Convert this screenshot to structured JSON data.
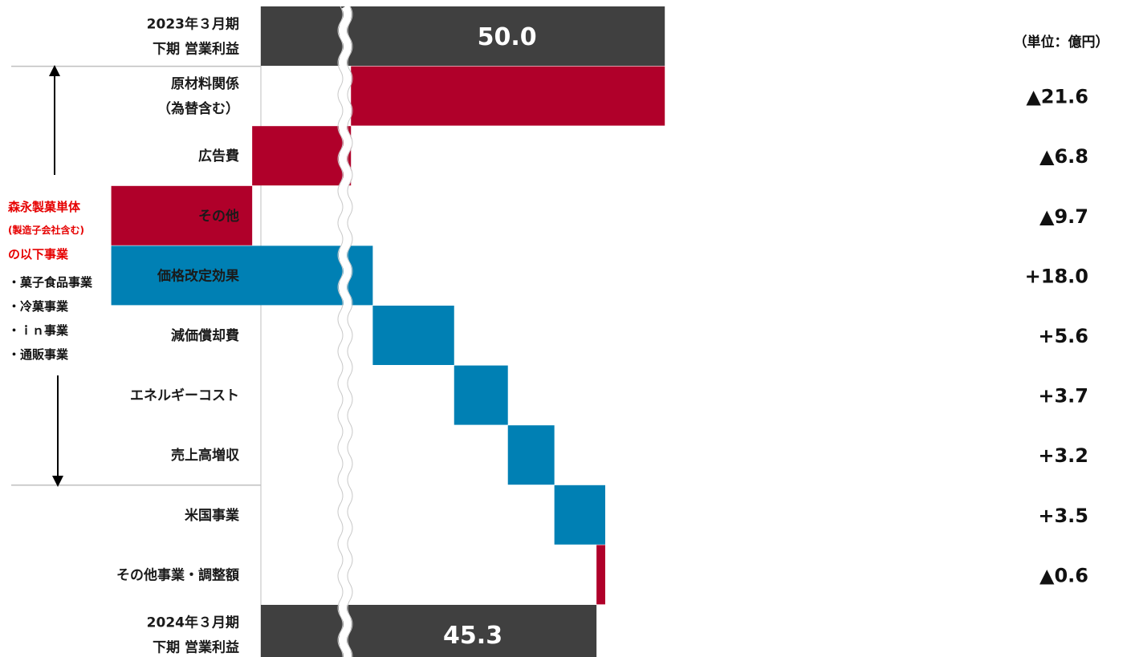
{
  "colors": {
    "decrease": "#b0002a",
    "increase": "#0080b4",
    "total": "#404040",
    "group_text": "#e60000"
  },
  "unit_label": "（単位：億円）",
  "group": {
    "title": "森永製菓単体",
    "subtitle": "(製造子会社含む)",
    "suffix": "の以下事業",
    "items": [
      "・菓子食品事業",
      "・冷菓事業",
      "・ｉｎ事業",
      "・通販事業"
    ]
  },
  "chart_data": {
    "type": "waterfall",
    "axis_break": true,
    "start": {
      "label_lines": [
        "2023年３月期",
        "下期 営業利益"
      ],
      "value": 50.0,
      "value_label": "50.0"
    },
    "steps": [
      {
        "label_lines": [
          "原材料関係",
          "（為替含む）"
        ],
        "value": -21.6,
        "value_label": "▲21.6"
      },
      {
        "label_lines": [
          "広告費"
        ],
        "value": -6.8,
        "value_label": "▲6.8"
      },
      {
        "label_lines": [
          "その他"
        ],
        "value": -9.7,
        "value_label": "▲9.7"
      },
      {
        "label_lines": [
          "価格改定効果"
        ],
        "value": 18.0,
        "value_label": "+18.0"
      },
      {
        "label_lines": [
          "減価償却費"
        ],
        "value": 5.6,
        "value_label": "+5.6"
      },
      {
        "label_lines": [
          "エネルギーコスト"
        ],
        "value": 3.7,
        "value_label": "+3.7"
      },
      {
        "label_lines": [
          "売上高増収"
        ],
        "value": 3.2,
        "value_label": "+3.2"
      },
      {
        "label_lines": [
          "米国事業"
        ],
        "value": 3.5,
        "value_label": "+3.5"
      },
      {
        "label_lines": [
          "その他事業・調整額"
        ],
        "value": -0.6,
        "value_label": "▲0.6"
      }
    ],
    "end": {
      "label_lines": [
        "2024年３月期",
        "下期 営業利益"
      ],
      "value": 45.3,
      "value_label": "45.3"
    }
  }
}
